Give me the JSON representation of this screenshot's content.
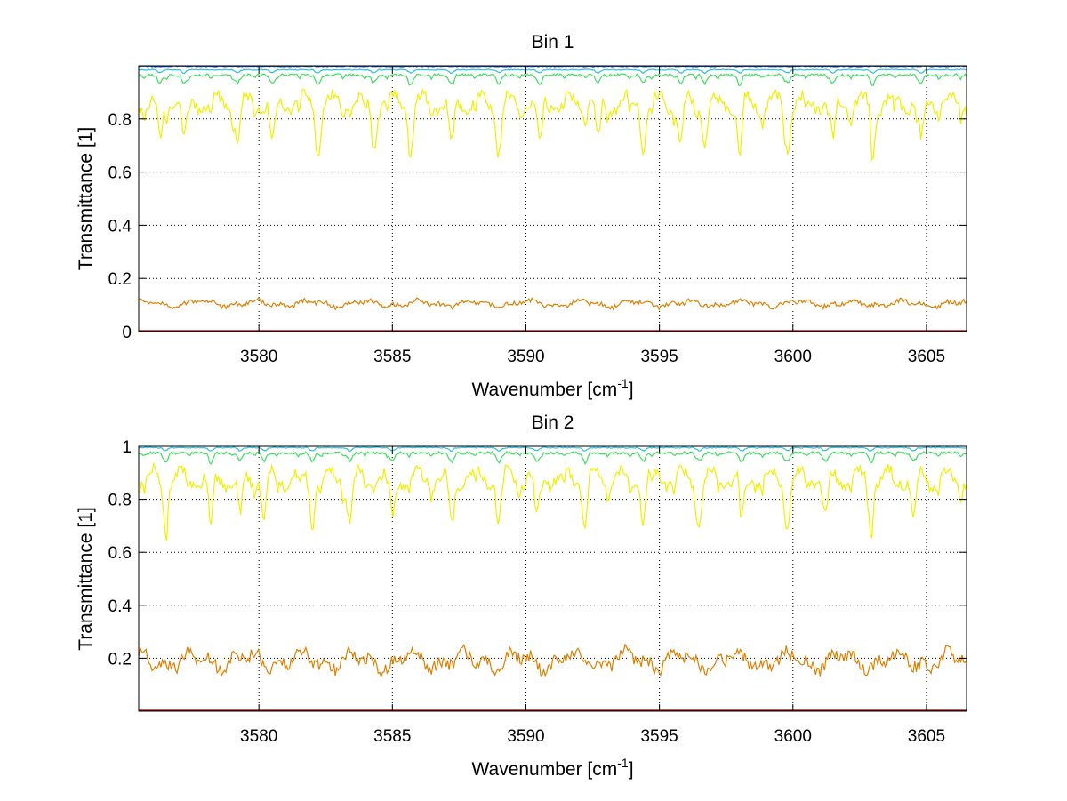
{
  "chart_data": [
    {
      "type": "line",
      "title": "Bin 1",
      "xlabel": "Wavenumber [cm",
      "xlabel_sup": "-1",
      "xlabel_end": "]",
      "ylabel": "Transmittance [1]",
      "xlim": [
        3575.5,
        3606.5
      ],
      "ylim": [
        0,
        1.0
      ],
      "xticks": [
        3580,
        3585,
        3590,
        3595,
        3600,
        3605
      ],
      "yticks": [
        0,
        0.2,
        0.4,
        0.6,
        0.8
      ],
      "ytick_labels": [
        "0",
        "0.2",
        "0.4",
        "0.6",
        "0.8"
      ],
      "grid": true,
      "series": [
        {
          "color": "#8b0000",
          "base": 0.0,
          "values": [
            0.003,
            0.003
          ]
        },
        {
          "color": "#e08000",
          "base": 0.105,
          "amp": 0.018,
          "dips": [
            0.15,
            0.13,
            0.14,
            0.1,
            0.09,
            0.1,
            0.12,
            0.1,
            0.08,
            0.13,
            0.1,
            0.15,
            0.1,
            0.14,
            0.11,
            0.08
          ]
        },
        {
          "color": "#f0f000",
          "base": 0.86,
          "dips": [
            3576.3,
            3577.2,
            3579.2,
            3580.5,
            3582.2,
            3584.3,
            3585.7,
            3587.2,
            3589.0,
            3590.5,
            3592.7,
            3594.4,
            3595.8,
            3596.7,
            3598.0,
            3599.8,
            3601.5,
            3603.0,
            3604.8
          ]
        },
        {
          "color": "#40e060",
          "base": 0.965
        },
        {
          "color": "#30c0e0",
          "base": 0.985
        },
        {
          "color": "#1050c0",
          "base": 0.998
        }
      ]
    },
    {
      "type": "line",
      "title": "Bin 2",
      "xlabel": "Wavenumber [cm",
      "xlabel_sup": "-1",
      "xlabel_end": "]",
      "ylabel": "Transmittance [1]",
      "xlim": [
        3575.5,
        3606.5
      ],
      "ylim": [
        0,
        1.0
      ],
      "xticks": [
        3580,
        3585,
        3590,
        3595,
        3600,
        3605
      ],
      "yticks": [
        0.2,
        0.4,
        0.6,
        0.8,
        1.0
      ],
      "ytick_labels": [
        "0.2",
        "0.4",
        "0.6",
        "0.8",
        "1"
      ],
      "grid": true,
      "series": [
        {
          "color": "#8b0000",
          "base": 0.0
        },
        {
          "color": "#e08000",
          "base": 0.19,
          "amp": 0.05
        },
        {
          "color": "#f0f000",
          "base": 0.88,
          "dips": [
            3576.5,
            3578.2,
            3579.3,
            3580.2,
            3582.0,
            3583.4,
            3585.0,
            3587.2,
            3589.0,
            3590.4,
            3592.2,
            3594.4,
            3596.5,
            3598.1,
            3599.8,
            3601.2,
            3602.9,
            3604.5
          ]
        },
        {
          "color": "#40e060",
          "base": 0.975
        },
        {
          "color": "#30c0e0",
          "base": 0.995
        }
      ]
    }
  ]
}
